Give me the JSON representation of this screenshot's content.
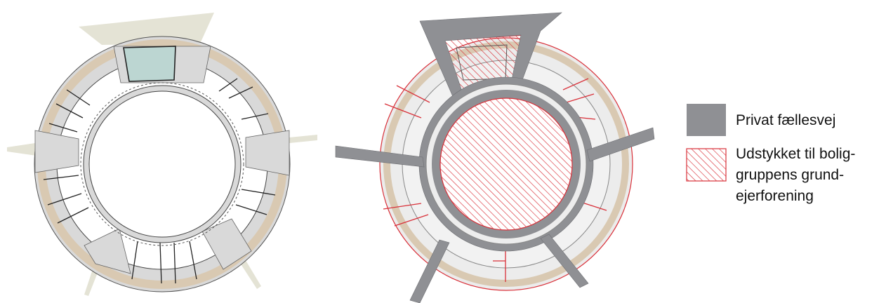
{
  "legend": {
    "items": [
      {
        "key": "road",
        "label_lines": [
          "Privat fællesvej"
        ],
        "color": "#8f9094"
      },
      {
        "key": "plot",
        "label_lines": [
          "Udstykket til bolig-",
          "gruppens grund-",
          "ejerforening"
        ],
        "color": "#d9313a"
      }
    ]
  },
  "colors": {
    "road": "#8f9094",
    "plot_hatch": "#d9313a",
    "ring_grey": "#d9d9d9",
    "garden_tan": "#d9c9b2",
    "common_house_teal": "#bcd6d2",
    "access_path_olive": "#e4e3d5"
  }
}
